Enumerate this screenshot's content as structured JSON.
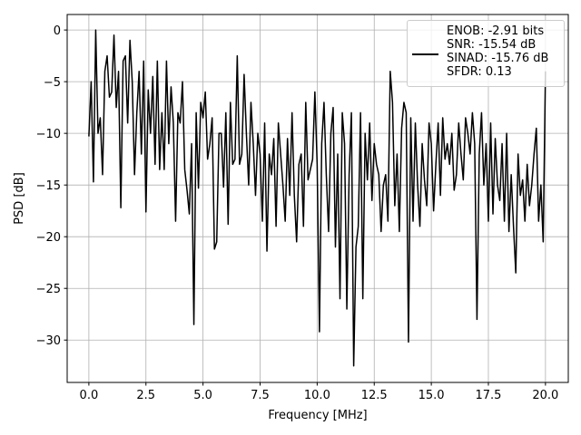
{
  "chart_data": {
    "type": "line",
    "xlabel": "Frequency [MHz]",
    "ylabel": "PSD [dB]",
    "x": [
      0,
      0.1,
      0.2,
      0.3,
      0.4,
      0.5,
      0.6,
      0.7,
      0.8,
      0.9,
      1,
      1.1,
      1.2,
      1.3,
      1.4,
      1.5,
      1.6,
      1.7,
      1.8,
      1.9,
      2,
      2.1,
      2.2,
      2.3,
      2.4,
      2.5,
      2.6,
      2.7,
      2.8,
      2.9,
      3,
      3.1,
      3.2,
      3.3,
      3.4,
      3.5,
      3.6,
      3.7,
      3.8,
      3.9,
      4,
      4.1,
      4.2,
      4.3,
      4.4,
      4.5,
      4.6,
      4.7,
      4.8,
      4.9,
      5,
      5.1,
      5.2,
      5.3,
      5.4,
      5.5,
      5.6,
      5.7,
      5.8,
      5.9,
      6,
      6.1,
      6.2,
      6.3,
      6.4,
      6.5,
      6.6,
      6.7,
      6.8,
      6.9,
      7,
      7.1,
      7.2,
      7.3,
      7.4,
      7.5,
      7.6,
      7.7,
      7.8,
      7.9,
      8,
      8.1,
      8.2,
      8.3,
      8.4,
      8.5,
      8.6,
      8.7,
      8.8,
      8.9,
      9,
      9.1,
      9.2,
      9.3,
      9.4,
      9.5,
      9.6,
      9.7,
      9.8,
      9.9,
      10,
      10.1,
      10.2,
      10.3,
      10.4,
      10.5,
      10.6,
      10.7,
      10.8,
      10.9,
      11,
      11.1,
      11.2,
      11.3,
      11.4,
      11.5,
      11.6,
      11.7,
      11.8,
      11.9,
      12,
      12.1,
      12.2,
      12.3,
      12.4,
      12.5,
      12.6,
      12.7,
      12.8,
      12.9,
      13,
      13.1,
      13.2,
      13.3,
      13.4,
      13.5,
      13.6,
      13.7,
      13.8,
      13.9,
      14,
      14.1,
      14.2,
      14.3,
      14.4,
      14.5,
      14.6,
      14.7,
      14.8,
      14.9,
      15,
      15.1,
      15.2,
      15.3,
      15.4,
      15.5,
      15.6,
      15.7,
      15.8,
      15.9,
      16,
      16.1,
      16.2,
      16.3,
      16.4,
      16.5,
      16.6,
      16.7,
      16.8,
      16.9,
      17,
      17.1,
      17.2,
      17.3,
      17.4,
      17.5,
      17.6,
      17.7,
      17.8,
      17.9,
      18,
      18.1,
      18.2,
      18.3,
      18.4,
      18.5,
      18.6,
      18.7,
      18.8,
      18.9,
      19,
      19.1,
      19.2,
      19.3,
      19.4,
      19.5,
      19.6,
      19.7,
      19.8,
      19.9,
      20
    ],
    "series": [
      {
        "name": "ENOB: -2.91 bits\nSNR: -15.54 dB\nSINAD: -15.76 dB\nSFDR: 0.13",
        "color": "#000000",
        "values": [
          -10.3,
          -5,
          -14.7,
          0,
          -10,
          -8.5,
          -14,
          -4,
          -2.5,
          -6.5,
          -6,
          -0.5,
          -7.5,
          -4,
          -17.2,
          -3,
          -2.5,
          -9,
          -1,
          -5,
          -14,
          -8,
          -4,
          -12,
          -3,
          -17.6,
          -5.8,
          -10,
          -4.5,
          -13,
          -3,
          -13.5,
          -8,
          -13.5,
          -3,
          -11,
          -5.5,
          -9,
          -18.5,
          -8,
          -9,
          -5,
          -13.5,
          -15.5,
          -17.8,
          -11,
          -28.5,
          -8,
          -15.3,
          -7,
          -8.5,
          -6,
          -12.5,
          -11,
          -8.5,
          -21.2,
          -20.5,
          -10,
          -10,
          -15.2,
          -8,
          -18.8,
          -7,
          -13,
          -12.5,
          -2.5,
          -13,
          -12,
          -4.3,
          -10,
          -15,
          -7,
          -11,
          -16,
          -10,
          -12,
          -18.5,
          -9,
          -21.4,
          -12,
          -14,
          -10.5,
          -19,
          -9,
          -12,
          -15,
          -18.5,
          -10.5,
          -16,
          -8,
          -16,
          -20.5,
          -13,
          -12,
          -19,
          -7,
          -14.5,
          -13.5,
          -12.5,
          -6,
          -13,
          -29.2,
          -11,
          -7,
          -14,
          -19.5,
          -10,
          -7.5,
          -21,
          -12,
          -26,
          -8,
          -11,
          -27,
          -14,
          -8,
          -32.5,
          -21,
          -19,
          -8,
          -26,
          -10,
          -14.5,
          -9,
          -16.5,
          -11,
          -13,
          -14,
          -19.5,
          -15,
          -14,
          -18.5,
          -4,
          -7,
          -17,
          -12,
          -19.5,
          -9.5,
          -7,
          -8,
          -30.2,
          -8.5,
          -18.5,
          -9,
          -15,
          -19,
          -11,
          -14.5,
          -17,
          -9,
          -11,
          -17.5,
          -13,
          -9,
          -16,
          -8.5,
          -12.5,
          -11,
          -13,
          -10,
          -15.5,
          -14,
          -9,
          -12,
          -14.5,
          -8.5,
          -10,
          -12,
          -8,
          -11,
          -28,
          -12,
          -8,
          -15,
          -11,
          -18.5,
          -9,
          -17.8,
          -10.5,
          -15,
          -16.5,
          -11,
          -18.5,
          -10,
          -19.5,
          -14,
          -19,
          -23.5,
          -12,
          -16,
          -14.5,
          -18.5,
          -13,
          -17,
          -15,
          -12,
          -9.5,
          -18.5,
          -15,
          -20.5,
          -4
        ]
      }
    ],
    "xlim": [
      -0.95,
      21
    ],
    "ylim": [
      -34.1,
      1.5
    ],
    "xticks": [
      {
        "value": 0,
        "label": "0.0"
      },
      {
        "value": 2.5,
        "label": "2.5"
      },
      {
        "value": 5,
        "label": "5.0"
      },
      {
        "value": 7.5,
        "label": "7.5"
      },
      {
        "value": 10,
        "label": "10.0"
      },
      {
        "value": 12.5,
        "label": "12.5"
      },
      {
        "value": 15,
        "label": "15.0"
      },
      {
        "value": 17.5,
        "label": "17.5"
      },
      {
        "value": 20,
        "label": "20.0"
      }
    ],
    "yticks": [
      {
        "value": -30,
        "label": "−30"
      },
      {
        "value": -25,
        "label": "−25"
      },
      {
        "value": -20,
        "label": "−20"
      },
      {
        "value": -15,
        "label": "−15"
      },
      {
        "value": -10,
        "label": "−10"
      },
      {
        "value": -5,
        "label": "−5"
      },
      0
    ],
    "grid": true,
    "legend": "upper right"
  }
}
